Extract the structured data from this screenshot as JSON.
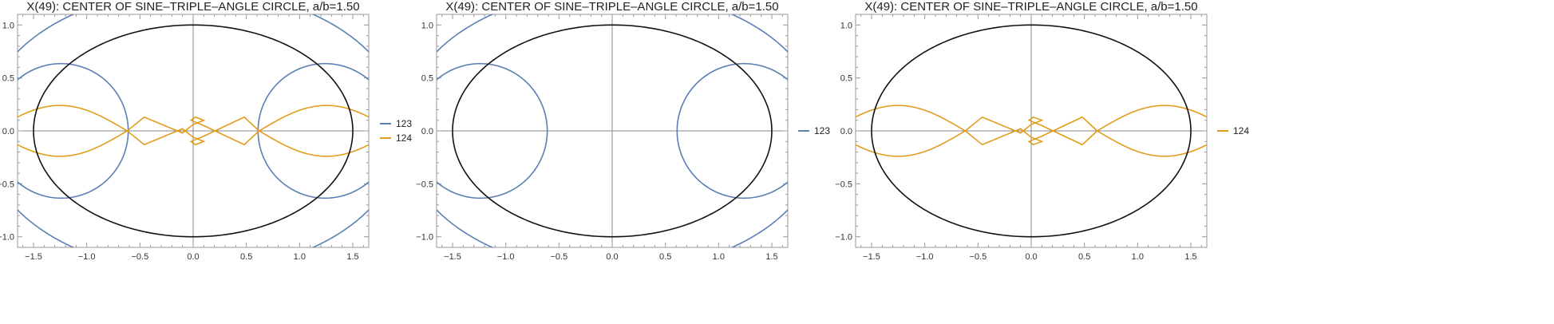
{
  "colors": {
    "s123": "#5b7fb5",
    "s124": "#e39d1e",
    "caustic": "#111111"
  },
  "chart_data": [
    {
      "type": "line",
      "title": "X(49): CENTER OF SINE–TRIPLE–ANGLE CIRCLE, a/b=1.50",
      "xlim": [
        -1.65,
        1.65
      ],
      "ylim": [
        -1.1,
        1.1
      ],
      "xticks": [
        "-1.5",
        "-1.0",
        "-0.5",
        "0.0",
        "0.5",
        "1.0",
        "1.5"
      ],
      "yticks": [
        "1.0",
        "0.5",
        "0.0",
        "-0.5",
        "-1.0"
      ],
      "legend": [
        "123",
        "124"
      ],
      "series_shown": [
        "123",
        "124"
      ],
      "legend_position": "right"
    },
    {
      "type": "line",
      "title": "X(49): CENTER OF SINE–TRIPLE–ANGLE CIRCLE, a/b=1.50",
      "xlim": [
        -1.65,
        1.65
      ],
      "ylim": [
        -1.1,
        1.1
      ],
      "xticks": [
        "-1.5",
        "-1.0",
        "-0.5",
        "0.0",
        "0.5",
        "1.0",
        "1.5"
      ],
      "yticks": [
        "1.0",
        "0.5",
        "0.0",
        "-0.5",
        "-1.0"
      ],
      "legend": [
        "123"
      ],
      "series_shown": [
        "123"
      ],
      "legend_position": "right"
    },
    {
      "type": "line",
      "title": "X(49): CENTER OF SINE–TRIPLE–ANGLE CIRCLE, a/b=1.50",
      "xlim": [
        -1.65,
        1.65
      ],
      "ylim": [
        -1.1,
        1.1
      ],
      "xticks": [
        "-1.5",
        "-1.0",
        "-0.5",
        "0.0",
        "0.5",
        "1.0",
        "1.5"
      ],
      "yticks": [
        "1.0",
        "0.5",
        "0.0",
        "-0.5",
        "-1.0"
      ],
      "legend": [
        "124"
      ],
      "series_shown": [
        "124"
      ],
      "legend_position": "right"
    }
  ]
}
